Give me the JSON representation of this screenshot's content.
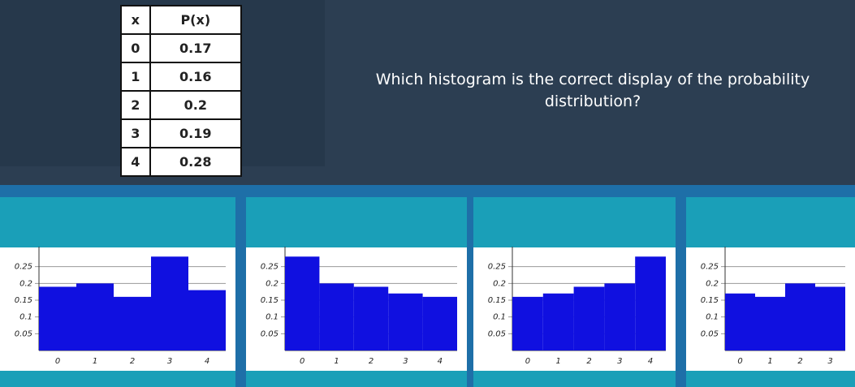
{
  "table": {
    "header": [
      "x",
      "P(x)"
    ],
    "rows": [
      [
        0,
        0.17
      ],
      [
        1,
        0.16
      ],
      [
        2,
        0.2
      ],
      [
        3,
        0.19
      ],
      [
        4,
        0.28
      ]
    ]
  },
  "question": "Which histogram is the correct display of the probability distribution?",
  "chart_data": [
    {
      "type": "bar",
      "categories": [
        "0",
        "1",
        "2",
        "3",
        "4"
      ],
      "values": [
        0.19,
        0.2,
        0.16,
        0.28,
        0.18
      ],
      "color": "#1010e0",
      "ylim": [
        0,
        0.3
      ],
      "yticks": [
        0.05,
        0.1,
        0.15,
        0.2,
        0.25
      ]
    },
    {
      "type": "bar",
      "categories": [
        "0",
        "1",
        "2",
        "3",
        "4"
      ],
      "values": [
        0.28,
        0.2,
        0.19,
        0.17,
        0.16
      ],
      "color": "#1010e0",
      "ylim": [
        0,
        0.3
      ],
      "yticks": [
        0.05,
        0.1,
        0.15,
        0.2,
        0.25
      ]
    },
    {
      "type": "bar",
      "categories": [
        "0",
        "1",
        "2",
        "3",
        "4"
      ],
      "values": [
        0.16,
        0.17,
        0.19,
        0.2,
        0.28
      ],
      "color": "#1010e0",
      "ylim": [
        0,
        0.3
      ],
      "yticks": [
        0.05,
        0.1,
        0.15,
        0.2,
        0.25
      ]
    },
    {
      "type": "bar",
      "categories": [
        "0",
        "1",
        "2",
        "3"
      ],
      "values": [
        0.17,
        0.16,
        0.2,
        0.19
      ],
      "color": "#1010e0",
      "ylim": [
        0,
        0.3
      ],
      "yticks": [
        0.05,
        0.1,
        0.15,
        0.2,
        0.25
      ]
    }
  ]
}
